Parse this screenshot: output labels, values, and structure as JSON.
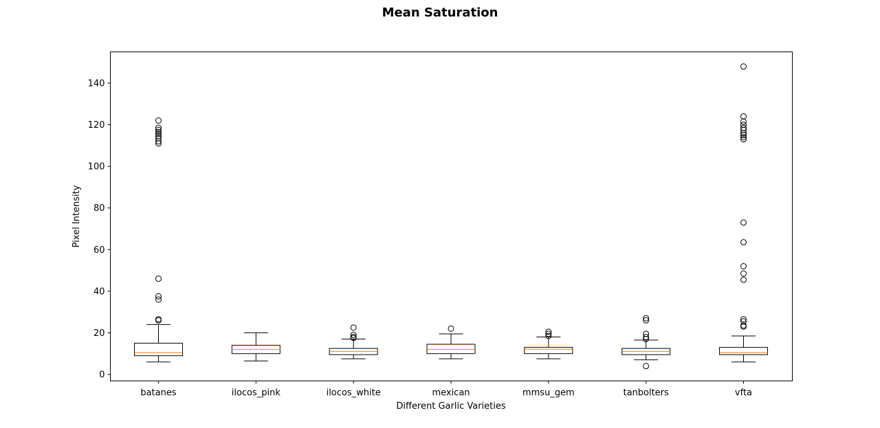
{
  "chart_data": {
    "type": "box",
    "title": "Mean Saturation",
    "xlabel": "Different Garlic Varieties",
    "ylabel": "Pixel Intensity",
    "ylim": [
      -3,
      155
    ],
    "yticks": [
      0,
      20,
      40,
      60,
      80,
      100,
      120,
      140
    ],
    "grid": false,
    "colors": {
      "box": "#000000",
      "median": "#ff7f0e",
      "flier": "#000000"
    },
    "categories": [
      "batanes",
      "ilocos_pink",
      "ilocos_white",
      "mexican",
      "mmsu_gem",
      "tanbolters",
      "vfta"
    ],
    "boxes": [
      {
        "name": "batanes",
        "whislo": 6,
        "q1": 9,
        "med": 10.5,
        "q3": 15,
        "whishi": 24,
        "fliers": [
          26,
          26.5,
          36,
          37.5,
          46,
          111,
          112,
          113.5,
          114.5,
          115.5,
          116.5,
          117.5,
          118.5,
          122
        ]
      },
      {
        "name": "ilocos_pink",
        "whislo": 6.5,
        "q1": 10,
        "med": 12,
        "q3": 14,
        "whishi": 20,
        "fliers": []
      },
      {
        "name": "ilocos_white",
        "whislo": 7.5,
        "q1": 9.5,
        "med": 11,
        "q3": 12.5,
        "whishi": 17,
        "fliers": [
          17.5,
          18,
          19,
          22.5
        ]
      },
      {
        "name": "mexican",
        "whislo": 7.5,
        "q1": 10,
        "med": 12,
        "q3": 14.5,
        "whishi": 19.5,
        "fliers": [
          22
        ]
      },
      {
        "name": "mmsu_gem",
        "whislo": 7.5,
        "q1": 10,
        "med": 12,
        "q3": 13,
        "whishi": 18,
        "fliers": [
          18.5,
          19.5,
          20.5
        ]
      },
      {
        "name": "tanbolters",
        "whislo": 7,
        "q1": 9.5,
        "med": 11,
        "q3": 12.5,
        "whishi": 16.5,
        "fliers": [
          4,
          17,
          18,
          19.5,
          26,
          27
        ]
      },
      {
        "name": "vfta",
        "whislo": 6,
        "q1": 9.5,
        "med": 10.5,
        "q3": 13,
        "whishi": 18.5,
        "fliers": [
          23,
          23.5,
          25.5,
          26.5,
          45.5,
          48.5,
          52,
          63.5,
          73,
          113,
          114,
          115,
          116,
          117.5,
          118.5,
          120,
          121.5,
          124,
          148
        ]
      }
    ]
  }
}
